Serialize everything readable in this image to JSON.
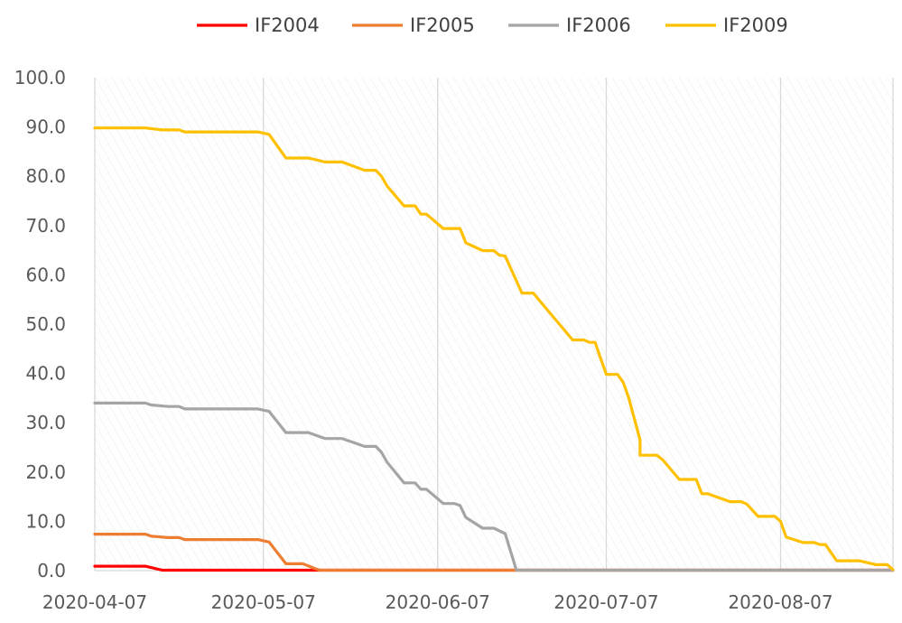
{
  "chart_data": {
    "type": "line",
    "title": "",
    "xlabel": "",
    "ylabel": "",
    "ylim": [
      0,
      100
    ],
    "y_ticks": [
      "100.0",
      "90.0",
      "80.0",
      "70.0",
      "60.0",
      "50.0",
      "40.0",
      "30.0",
      "20.0",
      "10.0",
      "0.0"
    ],
    "x_ticks": [
      "2020-04-07",
      "2020-05-07",
      "2020-06-07",
      "2020-07-07",
      "2020-08-07"
    ],
    "xlim": [
      "2020-04-07",
      "2020-08-27"
    ],
    "grid": "vertical-lines-at-ticks, hatched-background",
    "legend": "top",
    "series": [
      {
        "name": "IF2004",
        "color": "#ff0000",
        "points": [
          [
            "2020-04-07",
            0.9
          ],
          [
            "2020-04-16",
            0.9
          ],
          [
            "2020-04-19",
            0.1
          ],
          [
            "2020-05-07",
            0.1
          ],
          [
            "2020-08-27",
            0.1
          ]
        ]
      },
      {
        "name": "IF2005",
        "color": "#ed7d31",
        "points": [
          [
            "2020-04-07",
            7.4
          ],
          [
            "2020-04-16",
            7.4
          ],
          [
            "2020-04-17",
            7.0
          ],
          [
            "2020-04-20",
            6.7
          ],
          [
            "2020-04-22",
            6.7
          ],
          [
            "2020-04-23",
            6.3
          ],
          [
            "2020-05-06",
            6.3
          ],
          [
            "2020-05-08",
            5.8
          ],
          [
            "2020-05-11",
            1.4
          ],
          [
            "2020-05-14",
            1.4
          ],
          [
            "2020-05-16",
            0.5
          ],
          [
            "2020-05-17",
            0.1
          ],
          [
            "2020-08-27",
            0.1
          ]
        ]
      },
      {
        "name": "IF2006",
        "color": "#a5a5a5",
        "points": [
          [
            "2020-04-07",
            34.0
          ],
          [
            "2020-04-16",
            34.0
          ],
          [
            "2020-04-17",
            33.6
          ],
          [
            "2020-04-20",
            33.3
          ],
          [
            "2020-04-22",
            33.3
          ],
          [
            "2020-04-23",
            32.8
          ],
          [
            "2020-05-06",
            32.8
          ],
          [
            "2020-05-08",
            32.3
          ],
          [
            "2020-05-11",
            28.0
          ],
          [
            "2020-05-15",
            28.0
          ],
          [
            "2020-05-18",
            26.8
          ],
          [
            "2020-05-21",
            26.8
          ],
          [
            "2020-05-25",
            25.2
          ],
          [
            "2020-05-27",
            25.2
          ],
          [
            "2020-05-28",
            24.0
          ],
          [
            "2020-05-29",
            22.0
          ],
          [
            "2020-06-01",
            17.8
          ],
          [
            "2020-06-03",
            17.8
          ],
          [
            "2020-06-04",
            16.5
          ],
          [
            "2020-06-05",
            16.5
          ],
          [
            "2020-06-08",
            13.6
          ],
          [
            "2020-06-10",
            13.6
          ],
          [
            "2020-06-11",
            13.2
          ],
          [
            "2020-06-12",
            10.8
          ],
          [
            "2020-06-15",
            8.6
          ],
          [
            "2020-06-17",
            8.6
          ],
          [
            "2020-06-19",
            7.5
          ],
          [
            "2020-06-21",
            0.1
          ],
          [
            "2020-08-27",
            0.1
          ]
        ]
      },
      {
        "name": "IF2009",
        "color": "#ffc000",
        "points": [
          [
            "2020-04-07",
            89.8
          ],
          [
            "2020-04-16",
            89.8
          ],
          [
            "2020-04-19",
            89.4
          ],
          [
            "2020-04-22",
            89.4
          ],
          [
            "2020-04-23",
            89.0
          ],
          [
            "2020-05-06",
            89.0
          ],
          [
            "2020-05-08",
            88.5
          ],
          [
            "2020-05-11",
            83.7
          ],
          [
            "2020-05-15",
            83.7
          ],
          [
            "2020-05-18",
            82.9
          ],
          [
            "2020-05-21",
            82.9
          ],
          [
            "2020-05-25",
            81.2
          ],
          [
            "2020-05-27",
            81.2
          ],
          [
            "2020-05-28",
            80.0
          ],
          [
            "2020-05-29",
            78.0
          ],
          [
            "2020-06-01",
            74.0
          ],
          [
            "2020-06-03",
            74.0
          ],
          [
            "2020-06-04",
            72.3
          ],
          [
            "2020-06-05",
            72.3
          ],
          [
            "2020-06-08",
            69.4
          ],
          [
            "2020-06-11",
            69.4
          ],
          [
            "2020-06-12",
            66.5
          ],
          [
            "2020-06-15",
            64.9
          ],
          [
            "2020-06-17",
            64.9
          ],
          [
            "2020-06-18",
            64.0
          ],
          [
            "2020-06-19",
            63.8
          ],
          [
            "2020-06-22",
            56.3
          ],
          [
            "2020-06-24",
            56.3
          ],
          [
            "2020-07-01",
            46.8
          ],
          [
            "2020-07-03",
            46.8
          ],
          [
            "2020-07-04",
            46.3
          ],
          [
            "2020-07-05",
            46.3
          ],
          [
            "2020-07-06",
            43.0
          ],
          [
            "2020-07-07",
            39.8
          ],
          [
            "2020-07-09",
            39.8
          ],
          [
            "2020-07-10",
            38.2
          ],
          [
            "2020-07-11",
            35.0
          ],
          [
            "2020-07-13",
            26.5
          ],
          [
            "2020-07-13",
            23.4
          ],
          [
            "2020-07-16",
            23.4
          ],
          [
            "2020-07-17",
            22.5
          ],
          [
            "2020-07-20",
            18.5
          ],
          [
            "2020-07-23",
            18.5
          ],
          [
            "2020-07-24",
            15.6
          ],
          [
            "2020-07-25",
            15.6
          ],
          [
            "2020-07-29",
            14.0
          ],
          [
            "2020-07-31",
            14.0
          ],
          [
            "2020-08-01",
            13.5
          ],
          [
            "2020-08-03",
            11.0
          ],
          [
            "2020-08-06",
            11.0
          ],
          [
            "2020-08-07",
            10.0
          ],
          [
            "2020-08-08",
            6.8
          ],
          [
            "2020-08-11",
            5.7
          ],
          [
            "2020-08-13",
            5.7
          ],
          [
            "2020-08-14",
            5.3
          ],
          [
            "2020-08-15",
            5.3
          ],
          [
            "2020-08-17",
            2.0
          ],
          [
            "2020-08-21",
            2.0
          ],
          [
            "2020-08-24",
            1.2
          ],
          [
            "2020-08-26",
            1.2
          ],
          [
            "2020-08-27",
            0.2
          ]
        ]
      }
    ]
  }
}
